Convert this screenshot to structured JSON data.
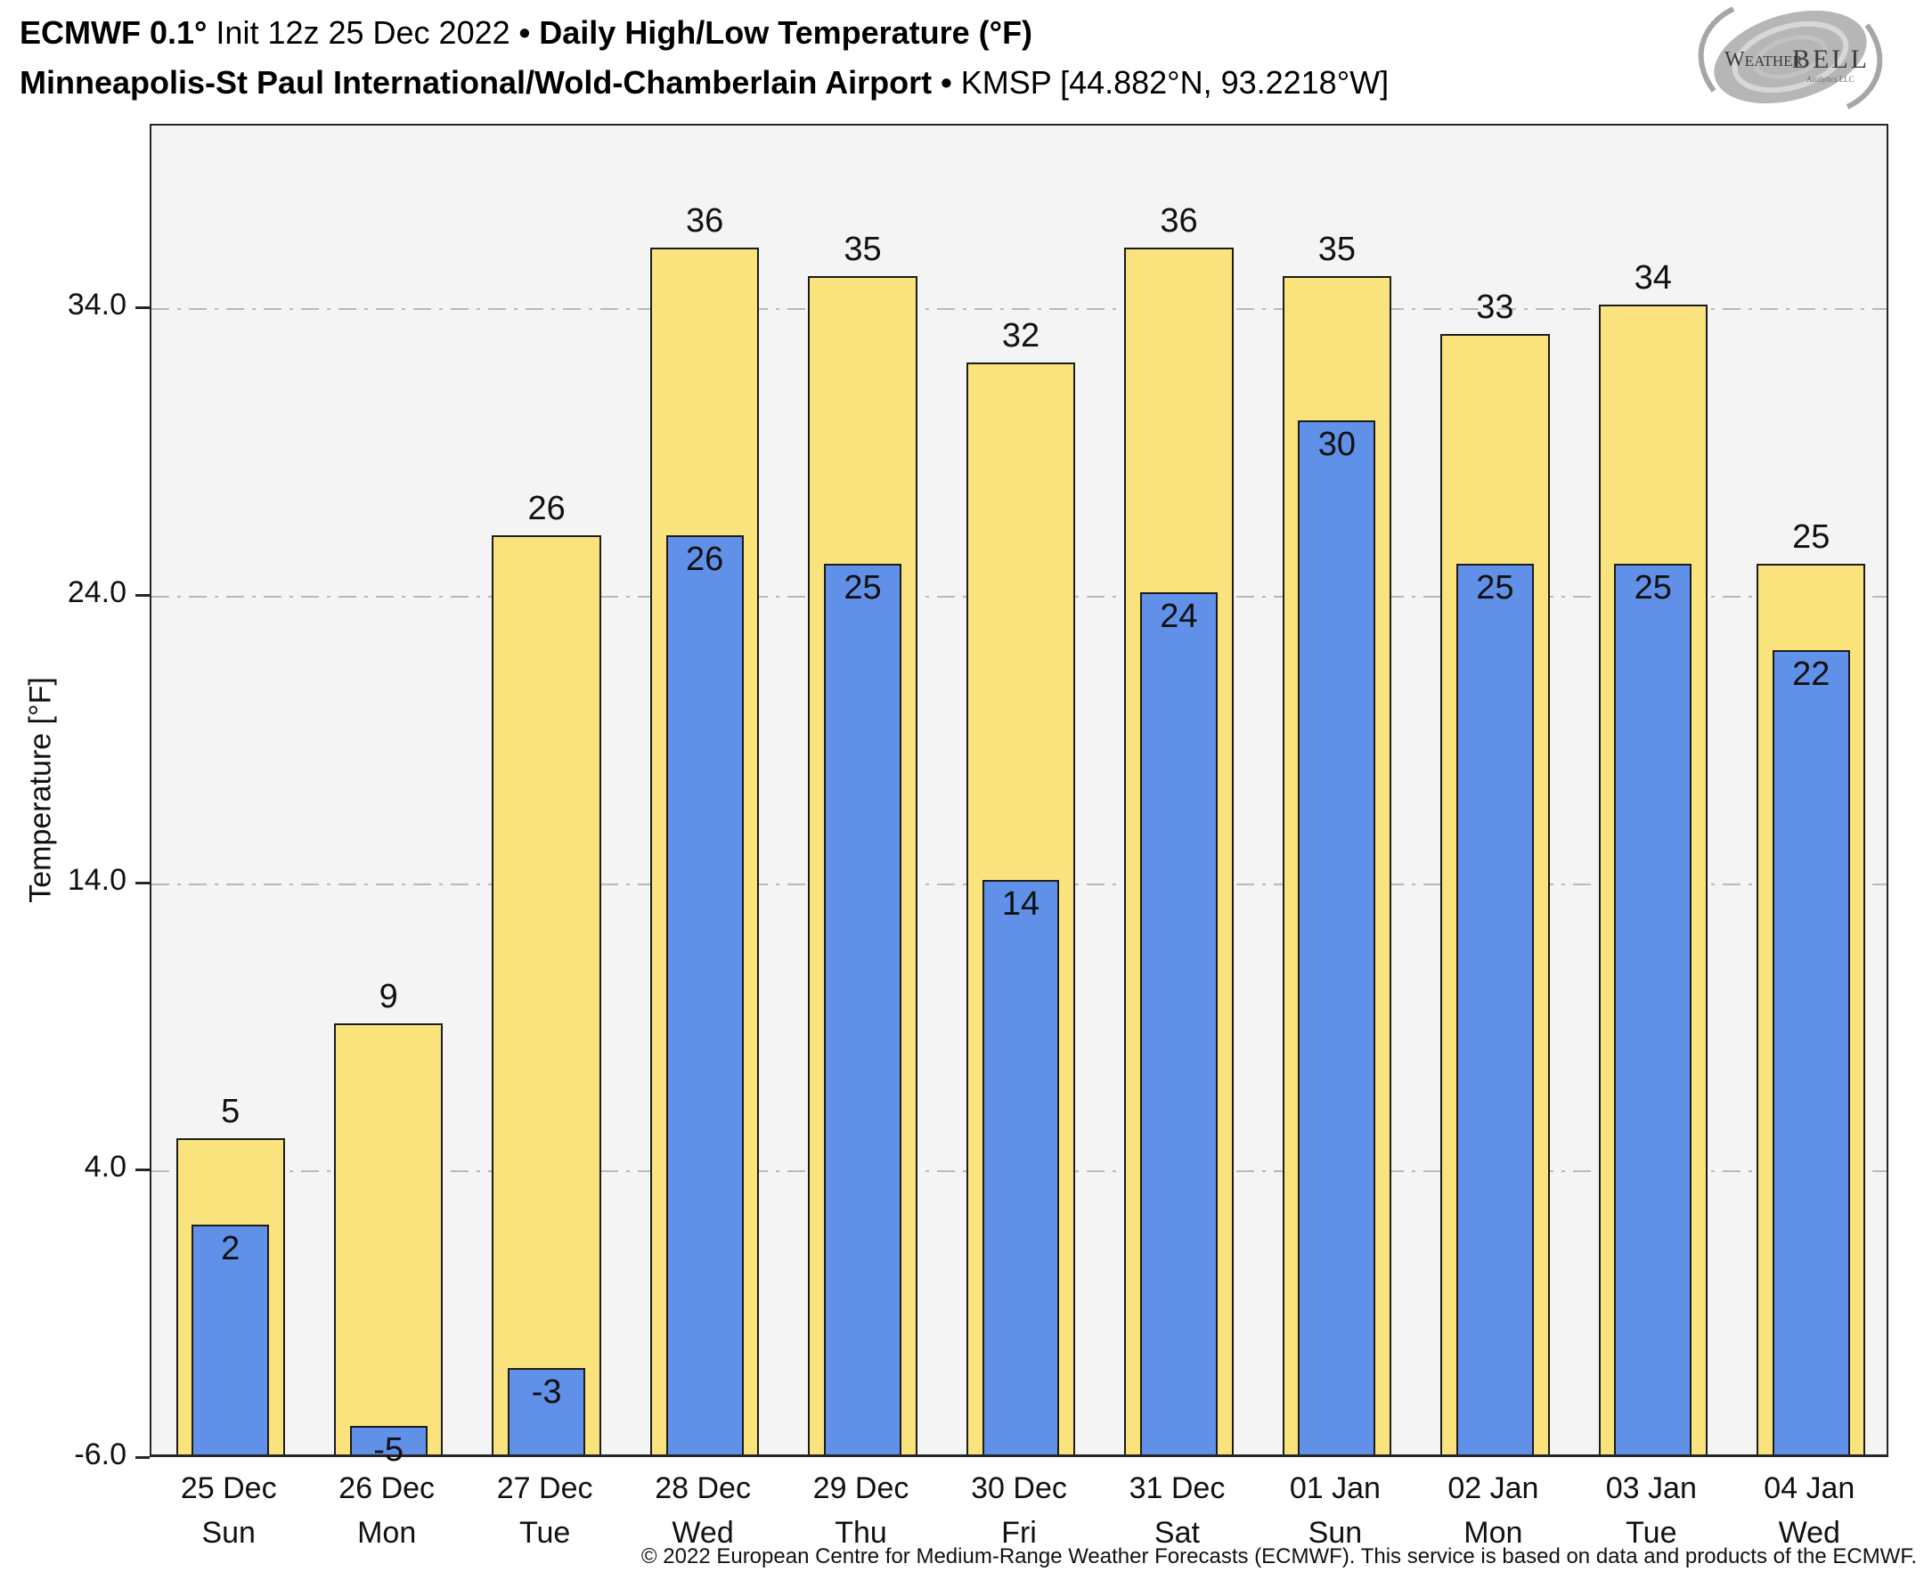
{
  "header": {
    "title_bold_model": "ECMWF 0.1°",
    "title_init": " Init 12z 25 Dec 2022",
    "bullet": "•",
    "title_bold_product": "Daily High/Low Temperature (°F)",
    "station_name": "Minneapolis-St Paul International/Wold-Chamberlain Airport",
    "station_id": "KMSP [44.882°N, 93.2218°W]"
  },
  "logo": {
    "brand_weather": "Weather",
    "brand_bell": "BELL",
    "brand_sub": "Analytics LLC"
  },
  "chart_data": {
    "type": "bar",
    "title": "Daily High/Low Temperature (°F)",
    "xlabel": "",
    "ylabel": "Temperature [°F]",
    "ylim": [
      -6,
      40.4
    ],
    "grid": "horizontal dash-dot at major ticks",
    "legend_position": "none",
    "yticks": [
      {
        "value": 34,
        "label": "34.0"
      },
      {
        "value": 24,
        "label": "24.0"
      },
      {
        "value": 14,
        "label": "14.0"
      },
      {
        "value": 4,
        "label": "4.0"
      },
      {
        "value": -6,
        "label": "-6.0"
      }
    ],
    "grid_values": [
      34,
      24,
      14,
      4
    ],
    "categories": [
      {
        "date": "25 Dec",
        "day": "Sun"
      },
      {
        "date": "26 Dec",
        "day": "Mon"
      },
      {
        "date": "27 Dec",
        "day": "Tue"
      },
      {
        "date": "28 Dec",
        "day": "Wed"
      },
      {
        "date": "29 Dec",
        "day": "Thu"
      },
      {
        "date": "30 Dec",
        "day": "Fri"
      },
      {
        "date": "31 Dec",
        "day": "Sat"
      },
      {
        "date": "01 Jan",
        "day": "Sun"
      },
      {
        "date": "02 Jan",
        "day": "Mon"
      },
      {
        "date": "03 Jan",
        "day": "Tue"
      },
      {
        "date": "04 Jan",
        "day": "Wed"
      }
    ],
    "series": [
      {
        "name": "High",
        "color": "#FAE37C",
        "values": [
          5,
          9,
          26,
          36,
          35,
          32,
          36,
          35,
          33,
          34,
          25
        ]
      },
      {
        "name": "Low",
        "color": "#6090E8",
        "values": [
          2,
          -5,
          -3,
          26,
          25,
          14,
          24,
          30,
          25,
          25,
          22
        ]
      }
    ]
  },
  "footer": {
    "copyright": "© 2022 European Centre for Medium-Range Weather Forecasts (ECMWF). This service is based on data and products of the ECMWF."
  }
}
